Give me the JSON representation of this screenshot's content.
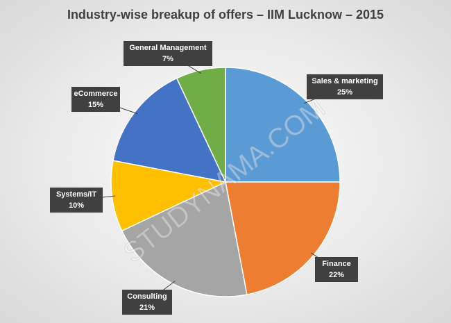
{
  "chart_data": {
    "type": "pie",
    "title": "Industry-wise breakup of offers – IIM Lucknow – 2015",
    "categories": [
      "Sales & marketing",
      "Finance",
      "Consulting",
      "Systems/IT",
      "eCommerce",
      "General Management"
    ],
    "values": [
      25,
      22,
      21,
      10,
      15,
      7
    ],
    "value_labels": [
      "25%",
      "22%",
      "21%",
      "10%",
      "15%",
      "7%"
    ],
    "colors": [
      "#5b9bd5",
      "#ed7d31",
      "#a5a5a5",
      "#ffc000",
      "#4472c4",
      "#70ad47"
    ],
    "watermark": "STUDYNAMA.COM"
  }
}
